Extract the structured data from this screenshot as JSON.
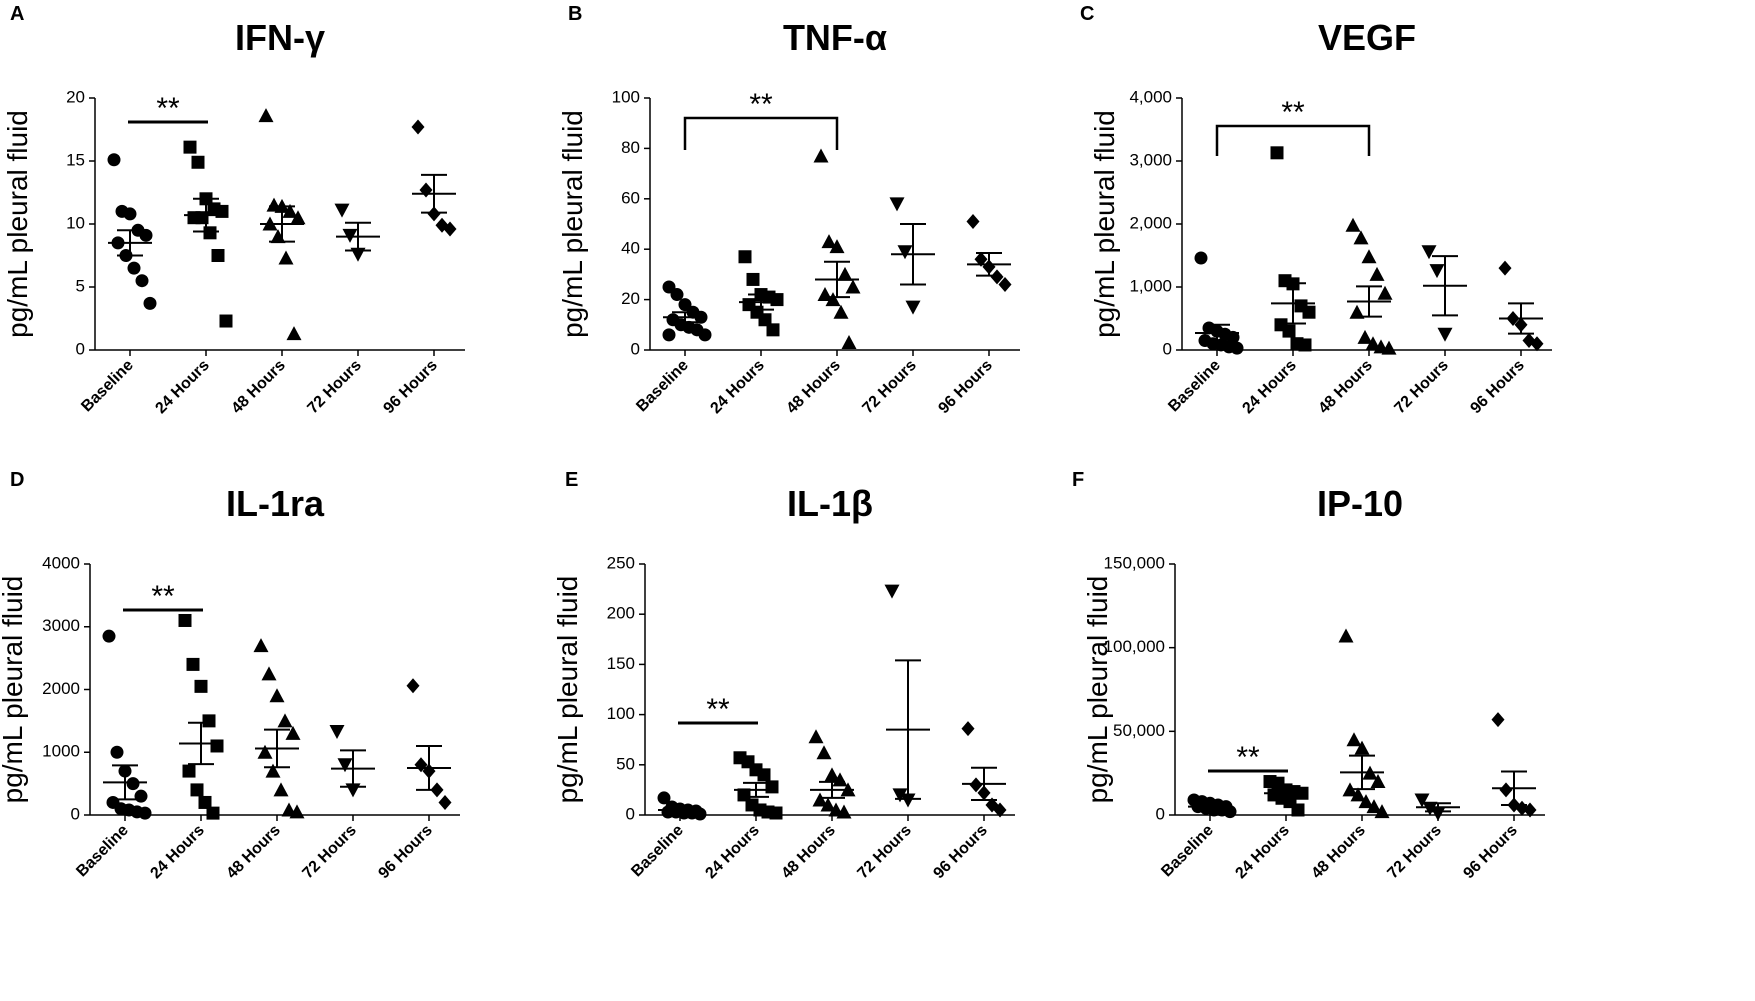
{
  "chart_data": [
    {
      "type": "dot",
      "letter": "A",
      "title": "IFN-γ",
      "y_label": "pg/mL pleural fluid",
      "categories": [
        "Baseline",
        "24 Hours",
        "48 Hours",
        "72 Hours",
        "96 Hours"
      ],
      "markers": [
        "circle",
        "square",
        "triangle-up",
        "triangle-down",
        "diamond"
      ],
      "color": "#000000",
      "groups": [
        [
          15.1,
          11,
          10.8,
          9.5,
          9.1,
          8.5,
          7.5,
          6.5,
          5.5,
          3.7
        ],
        [
          16.1,
          14.9,
          12,
          11.2,
          11,
          10.5,
          10.5,
          9.3,
          7.5,
          2.3
        ],
        [
          18.6,
          11.5,
          11.4,
          11,
          10.5,
          10,
          9,
          7.3,
          1.3
        ],
        [
          11.1,
          9.1,
          7.6
        ],
        [
          17.7,
          12.7,
          10.8,
          9.9,
          9.6
        ]
      ],
      "mean": [
        8.5,
        10.7,
        10,
        9,
        12.4
      ],
      "sem": [
        1,
        1.3,
        1.4,
        1.1,
        1.5
      ],
      "ylim": [
        0,
        20
      ],
      "yticks": [
        0,
        5,
        10,
        15,
        20
      ],
      "annotation": {
        "label": "**",
        "between": [
          0,
          1
        ],
        "style": "line"
      }
    },
    {
      "type": "dot",
      "letter": "B",
      "title": "TNF-α",
      "y_label": "pg/mL pleural fluid",
      "categories": [
        "Baseline",
        "24 Hours",
        "48 Hours",
        "72 Hours",
        "96 Hours"
      ],
      "markers": [
        "circle",
        "square",
        "triangle-up",
        "triangle-down",
        "diamond"
      ],
      "color": "#000000",
      "groups": [
        [
          25,
          22,
          18,
          15,
          13,
          12,
          10,
          9,
          8,
          6,
          6
        ],
        [
          37,
          28,
          22,
          21,
          20,
          18,
          15,
          12,
          8
        ],
        [
          77,
          43,
          41,
          30,
          25,
          22,
          20,
          15,
          3
        ],
        [
          58,
          39,
          17
        ],
        [
          51,
          36,
          33,
          29,
          26
        ]
      ],
      "mean": [
        13,
        19,
        28,
        38,
        34
      ],
      "sem": [
        2,
        3,
        7,
        12,
        4.5
      ],
      "ylim": [
        0,
        100
      ],
      "yticks": [
        0,
        20,
        40,
        60,
        80,
        100
      ],
      "annotation": {
        "label": "**",
        "between": [
          0,
          2
        ],
        "style": "bracket"
      }
    },
    {
      "type": "dot",
      "letter": "C",
      "title": "VEGF",
      "y_label": "pg/mL pleural fluid",
      "categories": [
        "Baseline",
        "24 Hours",
        "48 Hours",
        "72 Hours",
        "96 Hours"
      ],
      "markers": [
        "circle",
        "square",
        "triangle-up",
        "triangle-down",
        "diamond"
      ],
      "color": "#000000",
      "groups": [
        [
          1460,
          350,
          300,
          250,
          200,
          150,
          100,
          80,
          50,
          30
        ],
        [
          3130,
          1100,
          1050,
          700,
          600,
          400,
          300,
          100,
          80
        ],
        [
          1980,
          1780,
          1480,
          1200,
          900,
          600,
          200,
          100,
          50,
          30
        ],
        [
          1560,
          1260,
          250
        ],
        [
          1300,
          500,
          400,
          150,
          100
        ]
      ],
      "mean": [
        270,
        740,
        770,
        1020,
        500
      ],
      "sem": [
        130,
        320,
        240,
        470,
        240
      ],
      "ylim": [
        0,
        4000
      ],
      "yticks": [
        0,
        {
          "value": 1000,
          "label": "1,000"
        },
        {
          "value": 2000,
          "label": "2,000"
        },
        {
          "value": 3000,
          "label": "3,000"
        },
        {
          "value": 4000,
          "label": "4,000"
        }
      ],
      "annotation": {
        "label": "**",
        "between": [
          0,
          2
        ],
        "style": "bracket"
      }
    },
    {
      "type": "dot",
      "letter": "D",
      "title": "IL-1ra",
      "y_label": "pg/mL pleural fluid",
      "categories": [
        "Baseline",
        "24 Hours",
        "48 Hours",
        "72 Hours",
        "96 Hours"
      ],
      "markers": [
        "circle",
        "square",
        "triangle-up",
        "triangle-down",
        "diamond"
      ],
      "color": "#000000",
      "groups": [
        [
          2850,
          1000,
          700,
          500,
          300,
          200,
          100,
          80,
          50,
          30
        ],
        [
          3100,
          2400,
          2050,
          1500,
          1100,
          700,
          400,
          200,
          30
        ],
        [
          2700,
          2250,
          1900,
          1500,
          1300,
          1000,
          700,
          400,
          80,
          50
        ],
        [
          1330,
          800,
          400
        ],
        [
          2060,
          800,
          700,
          400,
          200
        ]
      ],
      "mean": [
        520,
        1140,
        1060,
        740,
        750
      ],
      "sem": [
        270,
        330,
        300,
        290,
        350
      ],
      "ylim": [
        0,
        4000
      ],
      "yticks": [
        0,
        1000,
        2000,
        3000,
        4000
      ],
      "annotation": {
        "label": "**",
        "between": [
          0,
          1
        ],
        "style": "line"
      }
    },
    {
      "type": "dot",
      "letter": "E",
      "title": "IL-1β",
      "y_label": "pg/mL pleural fluid",
      "categories": [
        "Baseline",
        "24 Hours",
        "48 Hours",
        "72 Hours",
        "96 Hours"
      ],
      "markers": [
        "circle",
        "square",
        "triangle-up",
        "triangle-down",
        "diamond"
      ],
      "color": "#000000",
      "groups": [
        [
          17,
          8,
          6,
          5,
          4,
          3,
          3,
          2,
          2,
          1
        ],
        [
          57,
          53,
          45,
          40,
          28,
          20,
          10,
          5,
          3,
          2
        ],
        [
          78,
          62,
          40,
          35,
          25,
          15,
          10,
          5,
          3
        ],
        [
          223,
          20,
          15
        ],
        [
          86,
          30,
          22,
          10,
          5
        ]
      ],
      "mean": [
        5,
        25,
        25,
        85,
        31
      ],
      "sem": [
        1.5,
        7,
        8,
        69,
        16
      ],
      "ylim": [
        0,
        250
      ],
      "yticks": [
        0,
        50,
        100,
        150,
        200,
        250
      ],
      "annotation": {
        "label": "**",
        "between": [
          0,
          1
        ],
        "style": "line"
      }
    },
    {
      "type": "dot",
      "letter": "F",
      "title": "IP-10",
      "y_label": "pg/mL pleural fluid",
      "categories": [
        "Baseline",
        "24 Hours",
        "48 Hours",
        "72 Hours",
        "96 Hours"
      ],
      "markers": [
        "circle",
        "square",
        "triangle-up",
        "triangle-down",
        "diamond"
      ],
      "color": "#000000",
      "groups": [
        [
          9000,
          8000,
          7000,
          6000,
          5000,
          5000,
          4000,
          3000,
          3000,
          2000
        ],
        [
          20000,
          19000,
          15000,
          14000,
          13000,
          12000,
          10000,
          8000,
          3000
        ],
        [
          107000,
          45000,
          40000,
          25000,
          20000,
          15000,
          12000,
          8000,
          5000,
          2000
        ],
        [
          9000,
          4000,
          1000
        ],
        [
          57000,
          15000,
          6000,
          4000,
          3000
        ]
      ],
      "mean": [
        5000,
        13000,
        25500,
        4600,
        16000
      ],
      "sem": [
        800,
        2000,
        10000,
        2400,
        10000
      ],
      "ylim": [
        0,
        150000
      ],
      "yticks": [
        0,
        {
          "value": 50000,
          "label": "50,000"
        },
        {
          "value": 100000,
          "label": "100,000"
        },
        {
          "value": 150000,
          "label": "150,000"
        }
      ],
      "annotation": {
        "label": "**",
        "between": [
          0,
          1
        ],
        "style": "line"
      }
    }
  ]
}
